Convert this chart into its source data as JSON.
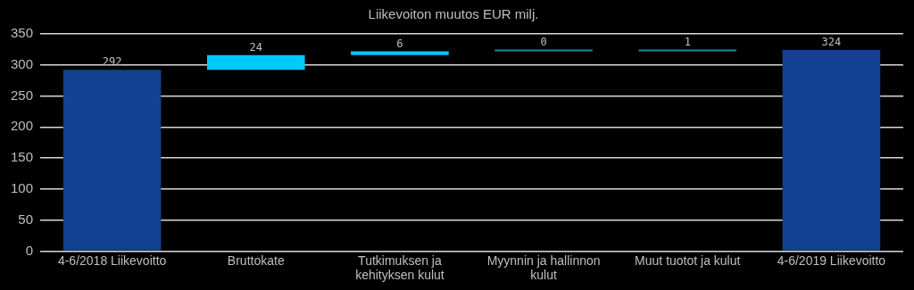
{
  "chart_data": {
    "type": "bar",
    "title": "Liikevoiton muutos EUR milj.",
    "categories": [
      "4-6/2018 Liikevoitto",
      "Bruttokate",
      "Tutkimuksen ja kehityksen kulut",
      "Myynnin ja hallinnon kulut",
      "Muut tuotot ja kulut",
      "4-6/2019 Liikevoitto"
    ],
    "values": [
      292,
      24,
      6,
      0,
      1,
      324
    ],
    "base": [
      0,
      292,
      316,
      322,
      322,
      0
    ],
    "colors": [
      "#124191",
      "#00c9ff",
      "#00c9ff",
      "#1a8aa0",
      "#1a8aa0",
      "#124191"
    ],
    "ylim": [
      0,
      350
    ],
    "yticks": [
      0,
      50,
      100,
      150,
      200,
      250,
      300,
      350
    ],
    "grid": "y",
    "data_labels": true
  }
}
